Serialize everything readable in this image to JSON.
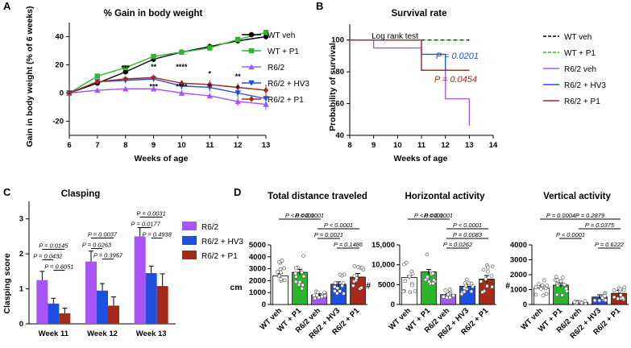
{
  "chart_data": [
    {
      "panel": "A",
      "type": "line",
      "title": "% Gain in body weight",
      "xlabel": "Weeks of age",
      "ylabel": "Gain in body weight (% of 6 weeks)",
      "xlim": [
        6,
        13
      ],
      "ylim": [
        -30,
        50
      ],
      "xticks": [
        "6",
        "7",
        "8",
        "9",
        "10",
        "11",
        "12",
        "13"
      ],
      "yticks": [
        "-20",
        "0",
        "20",
        "40"
      ],
      "x": [
        6,
        7,
        8,
        9,
        10,
        11,
        12,
        13
      ],
      "series": [
        {
          "name": "WT veh",
          "color": "#000000",
          "marker": "circle",
          "values": [
            0,
            7,
            15,
            24,
            29,
            33,
            37,
            40
          ],
          "err": [
            0,
            1,
            1.5,
            2,
            1.5,
            2,
            2,
            2
          ]
        },
        {
          "name": "WT + P1",
          "color": "#2db52d",
          "marker": "square",
          "values": [
            0,
            12,
            18,
            26,
            29,
            32,
            38,
            43
          ],
          "err": [
            0,
            1.5,
            1.5,
            1.5,
            2,
            2,
            2,
            2
          ]
        },
        {
          "name": "R6/2",
          "color": "#a855f7",
          "marker": "triangle-up",
          "values": [
            0,
            2,
            3,
            3,
            0,
            -2,
            -6,
            -8
          ],
          "err": [
            0,
            1,
            1.5,
            1.5,
            2,
            2,
            3,
            4
          ]
        },
        {
          "name": "R6/2 + HV3",
          "color": "#1f4fe0",
          "marker": "triangle-down",
          "values": [
            0,
            8,
            9,
            10,
            5,
            4,
            0,
            -4
          ],
          "err": [
            0,
            1.5,
            2,
            2,
            2.5,
            3,
            3,
            4
          ]
        },
        {
          "name": "R6/2 + P1",
          "color": "#a52a1a",
          "marker": "diamond",
          "values": [
            0,
            8,
            10,
            11,
            7,
            6,
            4,
            2
          ],
          "err": [
            0,
            1.5,
            1.5,
            2,
            2,
            3,
            3,
            4
          ]
        }
      ],
      "annotations": [
        {
          "x": 8,
          "y": 16,
          "text": "***",
          "color": "#000000"
        },
        {
          "x": 9,
          "y": 17,
          "text": "**",
          "color": "#000000"
        },
        {
          "x": 9,
          "y": 3,
          "text": "***",
          "color": "#000000"
        },
        {
          "x": 10,
          "y": 17,
          "text": "****",
          "color": "#000000"
        },
        {
          "x": 10,
          "y": 3,
          "text": "****",
          "color": "#000000"
        },
        {
          "x": 11,
          "y": 12,
          "text": "*",
          "color": "#000000"
        },
        {
          "x": 11,
          "y": 3,
          "text": "*",
          "color": "#000000"
        },
        {
          "x": 12,
          "y": 10,
          "text": "**",
          "color": "#000000"
        },
        {
          "x": 12,
          "y": 2,
          "text": "*",
          "color": "#000000"
        }
      ]
    },
    {
      "panel": "B",
      "type": "line",
      "title": "Survival rate",
      "xlabel": "Weeks of age",
      "ylabel": "Probability of survival",
      "xlim": [
        8,
        14
      ],
      "ylim": [
        40,
        110
      ],
      "xticks": [
        "8",
        "9",
        "10",
        "11",
        "12",
        "13",
        "14"
      ],
      "yticks": [
        "40",
        "60",
        "80",
        "100"
      ],
      "step": true,
      "series": [
        {
          "name": "WT veh",
          "color": "#000000",
          "dash": true,
          "x": [
            8,
            13
          ],
          "y": [
            100,
            100
          ]
        },
        {
          "name": "WT + P1",
          "color": "#2db52d",
          "dash": true,
          "x": [
            8,
            13
          ],
          "y": [
            100,
            100
          ]
        },
        {
          "name": "R6/2 veh",
          "color": "#a855f7",
          "x": [
            8,
            9,
            11,
            12,
            13
          ],
          "y": [
            100,
            95,
            81,
            63,
            46
          ]
        },
        {
          "name": "R6/2 + HV3",
          "color": "#1f4fe0",
          "x": [
            8,
            11,
            12,
            13
          ],
          "y": [
            100,
            91,
            81,
            81
          ]
        },
        {
          "name": "R6/2 + P1",
          "color": "#a52a1a",
          "x": [
            8,
            11,
            13
          ],
          "y": [
            100,
            81,
            81
          ]
        }
      ],
      "annotations": [
        {
          "text": "Log rank test",
          "color": "#000000"
        },
        {
          "text": "P = 0.0201",
          "color": "#1f4fe0"
        },
        {
          "text": "P = 0.0454",
          "color": "#a52a1a"
        }
      ]
    },
    {
      "panel": "C",
      "type": "bar",
      "title": "Clasping",
      "ylabel": "Clasping score",
      "ylim": [
        0,
        3.5
      ],
      "yticks": [
        "0",
        "1",
        "2",
        "3"
      ],
      "categories": [
        "Week 11",
        "Week 12",
        "Week 13"
      ],
      "series": [
        {
          "name": "R6/2",
          "color": "#a855f7",
          "values": [
            1.25,
            1.78,
            2.5
          ],
          "err": [
            0.25,
            0.3,
            0.25
          ]
        },
        {
          "name": "R6/2 + HV3",
          "color": "#1f4fe0",
          "values": [
            0.58,
            0.95,
            1.45
          ],
          "err": [
            0.15,
            0.2,
            0.2
          ]
        },
        {
          "name": "R6/2 + P1",
          "color": "#a52a1a",
          "values": [
            0.3,
            0.52,
            1.08
          ],
          "err": [
            0.15,
            0.25,
            0.35
          ]
        }
      ],
      "comparisons": [
        {
          "group": 0,
          "from": 0,
          "to": 2,
          "text": "P = 0.0145"
        },
        {
          "group": 0,
          "from": 0,
          "to": 1,
          "text": "P = 0.0432"
        },
        {
          "group": 0,
          "from": 1,
          "to": 2,
          "text": "P = 0.6051"
        },
        {
          "group": 1,
          "from": 0,
          "to": 2,
          "text": "P = 0.0037"
        },
        {
          "group": 1,
          "from": 0,
          "to": 1,
          "text": "P = 0.0263"
        },
        {
          "group": 1,
          "from": 1,
          "to": 2,
          "text": "P = 0.3957"
        },
        {
          "group": 2,
          "from": 0,
          "to": 2,
          "text": "P = 0.0031"
        },
        {
          "group": 2,
          "from": 0,
          "to": 1,
          "text": "P = 0.0177"
        },
        {
          "group": 2,
          "from": 1,
          "to": 2,
          "text": "P = 0.4938"
        }
      ]
    },
    {
      "panel": "D",
      "type": "bar",
      "title": "Total distance traveled",
      "ylabel": "cm",
      "ylim": [
        0,
        5000
      ],
      "yticks": [
        "0",
        "1000",
        "2000",
        "3000",
        "4000",
        "5000"
      ],
      "categories": [
        "WT veh",
        "WT + P1",
        "R6/2 veh",
        "R6/2 + HV3",
        "R6/2 + P1"
      ],
      "colors": [
        "#ffffff",
        "#2db52d",
        "#a855f7",
        "#1f4fe0",
        "#a52a1a"
      ],
      "values": [
        2400,
        2700,
        800,
        1700,
        2300
      ],
      "err": [
        200,
        250,
        100,
        200,
        300
      ],
      "comparisons": [
        {
          "from": 0,
          "to": 2,
          "text": "P < 0.0001"
        },
        {
          "from": 2,
          "to": 4,
          "text": "P < 0.0001"
        },
        {
          "from": 1,
          "to": 2,
          "text": "P < 0.0001"
        },
        {
          "from": 2,
          "to": 3,
          "text": "P = 0.0021"
        },
        {
          "from": 3,
          "to": 4,
          "text": "P = 0.1486"
        }
      ]
    },
    {
      "panel": "D",
      "type": "bar",
      "title": "Horizontal activity",
      "ylabel": "#",
      "ylim": [
        0,
        15000
      ],
      "yticks": [
        "0",
        "5000",
        "10,000",
        "15,000"
      ],
      "categories": [
        "WT veh",
        "WT + P1",
        "R6/2 veh",
        "R6/2 + HV3",
        "R6/2 + P1"
      ],
      "colors": [
        "#ffffff",
        "#2db52d",
        "#a855f7",
        "#1f4fe0",
        "#a52a1a"
      ],
      "values": [
        6800,
        8200,
        2500,
        4600,
        6400
      ],
      "err": [
        400,
        600,
        300,
        500,
        900
      ],
      "comparisons": [
        {
          "from": 0,
          "to": 2,
          "text": "P < 0.0001"
        },
        {
          "from": 2,
          "to": 4,
          "text": "P < 0.0001"
        },
        {
          "from": 1,
          "to": 2,
          "text": "P < 0.0001"
        },
        {
          "from": 2,
          "to": 4,
          "text": "P = 0.0083"
        },
        {
          "from": 2,
          "to": 3,
          "text": "P = 0.0262"
        }
      ]
    },
    {
      "panel": "D",
      "type": "bar",
      "title": "Vertical activity",
      "ylabel": "#",
      "ylim": [
        0,
        4000
      ],
      "yticks": [
        "0",
        "1000",
        "2000",
        "3000",
        "4000"
      ],
      "categories": [
        "WT veh",
        "WT + P1",
        "R6/2 veh",
        "R6/2 + HV3",
        "R6/2 + P1"
      ],
      "colors": [
        "#ffffff",
        "#2db52d",
        "#a855f7",
        "#1f4fe0",
        "#a52a1a"
      ],
      "values": [
        1100,
        1300,
        150,
        500,
        750
      ],
      "err": [
        150,
        150,
        50,
        150,
        200
      ],
      "comparisons": [
        {
          "from": 0,
          "to": 2,
          "text": "P = 0.0004"
        },
        {
          "from": 2,
          "to": 4,
          "text": "P = 0.0375"
        },
        {
          "from": 1,
          "to": 4,
          "text": "P = 0.2879"
        },
        {
          "from": 1,
          "to": 2,
          "text": "P < 0.0001"
        },
        {
          "from": 3,
          "to": 4,
          "text": "P = 0.6222"
        }
      ]
    }
  ],
  "panel_labels": [
    "A",
    "B",
    "C",
    "D"
  ],
  "legends": {
    "A": [
      "WT veh",
      "WT + P1",
      "R6/2",
      "R6/2 + HV3",
      "R6/2 + P1"
    ],
    "B": [
      "WT veh",
      "WT + P1",
      "R6/2 veh",
      "R6/2 + HV3",
      "R6/2 + P1"
    ],
    "C": [
      "R6/2",
      "R6/2 + HV3",
      "R6/2 + P1"
    ]
  }
}
